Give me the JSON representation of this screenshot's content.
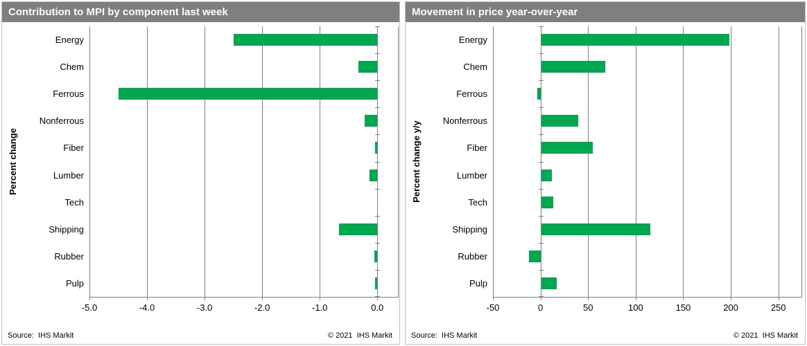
{
  "colors": {
    "bar_green": "#00A84F",
    "header_bg": "#7F7F7F",
    "gridline": "#808080",
    "panel_border": "#BFBFBF",
    "title_text": "#FFFFFF"
  },
  "chart_data": [
    {
      "type": "bar",
      "orientation": "horizontal",
      "title": "Contribution to MPI by component last week",
      "ylabel": "Percent change",
      "xlabel": "",
      "categories": [
        "Energy",
        "Chem",
        "Ferrous",
        "Nonferrous",
        "Fiber",
        "Lumber",
        "Tech",
        "Shipping",
        "Rubber",
        "Pulp"
      ],
      "values": [
        -2.5,
        -0.33,
        -4.5,
        -0.22,
        -0.04,
        -0.14,
        0,
        -0.66,
        -0.05,
        -0.04
      ],
      "xlim": [
        -5.0,
        0.37
      ],
      "xticks": [
        -5,
        -4,
        -3,
        -2,
        -1,
        0
      ],
      "xtick_labels": [
        "-5.0",
        "-4.0",
        "-3.0",
        "-2.0",
        "-1.0",
        "0.0"
      ],
      "grid": true,
      "legend": "none",
      "bar_color": "#00A84F",
      "source": "Source:  IHS Markit",
      "copyright": "© 2021  IHS Markit"
    },
    {
      "type": "bar",
      "orientation": "horizontal",
      "title": "Movement in price year-over-year",
      "ylabel": "Percent change y/y",
      "xlabel": "",
      "categories": [
        "Energy",
        "Chem",
        "Ferrous",
        "Nonferrous",
        "Fiber",
        "Lumber",
        "Tech",
        "Shipping",
        "Rubber",
        "Pulp"
      ],
      "values": [
        198,
        67,
        -3,
        39,
        54,
        11,
        13,
        115,
        -12,
        16
      ],
      "xlim": [
        -50,
        275
      ],
      "xticks": [
        -50,
        0,
        50,
        100,
        150,
        200,
        250
      ],
      "xtick_labels": [
        "-50",
        "0",
        "50",
        "100",
        "150",
        "200",
        "250"
      ],
      "grid": true,
      "legend": "none",
      "bar_color": "#00A84F",
      "source": "Source:  IHS Markit",
      "copyright": "© 2021  IHS Markit"
    }
  ]
}
